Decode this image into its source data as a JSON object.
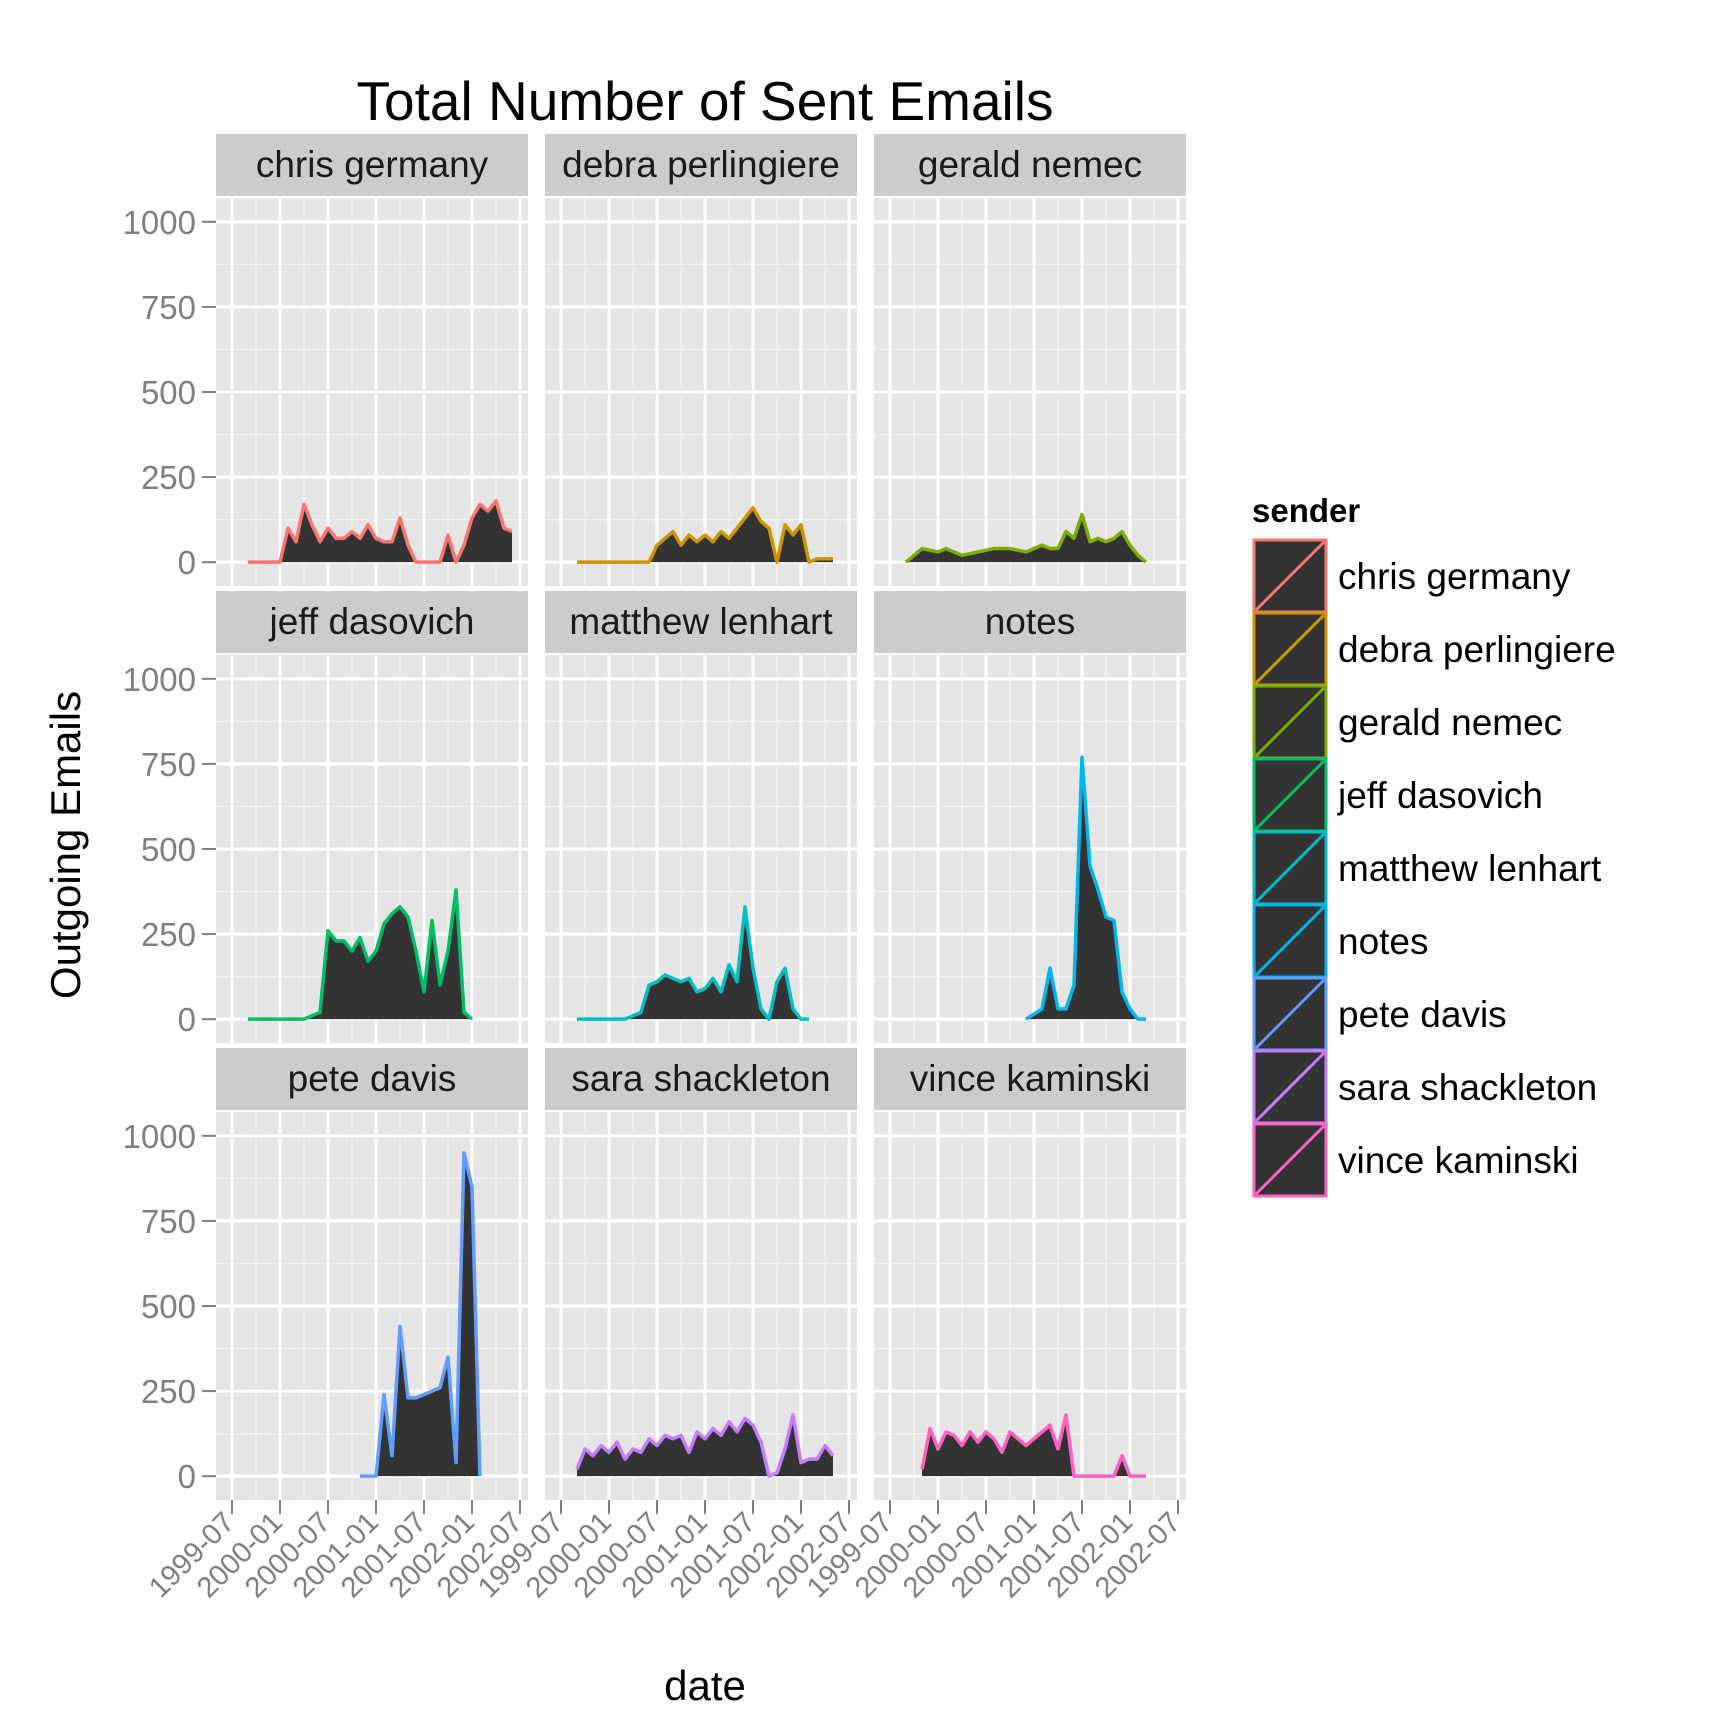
{
  "chart_data": {
    "type": "area",
    "title": "Total Number of Sent Emails",
    "xlabel": "date",
    "ylabel": "Outgoing Emails",
    "ylim": [
      0,
      1000
    ],
    "yticks": [
      0,
      250,
      500,
      750,
      1000
    ],
    "yticks_labels": [
      "0",
      "250",
      "500",
      "750",
      "1000"
    ],
    "xlim": [
      "1999-05",
      "2002-08"
    ],
    "xticks": [
      "1999-07",
      "2000-01",
      "2000-07",
      "2001-01",
      "2001-07",
      "2002-01",
      "2002-07"
    ],
    "grid": true,
    "facets": "3x3 grid by sender",
    "fill_color": "#333333",
    "panel_background": "#e5e5e5",
    "strip_background": "#cccccc",
    "legend": {
      "title": "sender",
      "placement": "right"
    },
    "series": [
      {
        "name": "chris germany",
        "color": "#F8766D",
        "x": [
          "1999-09",
          "2000-01",
          "2000-02",
          "2000-03",
          "2000-04",
          "2000-05",
          "2000-06",
          "2000-07",
          "2000-08",
          "2000-09",
          "2000-10",
          "2000-11",
          "2000-12",
          "2001-01",
          "2001-02",
          "2001-03",
          "2001-04",
          "2001-05",
          "2001-06",
          "2001-07",
          "2001-08",
          "2001-09",
          "2001-10",
          "2001-11",
          "2001-12",
          "2002-01",
          "2002-02",
          "2002-03",
          "2002-04",
          "2002-05",
          "2002-06"
        ],
        "y": [
          0,
          0,
          100,
          60,
          170,
          110,
          60,
          100,
          70,
          70,
          90,
          70,
          110,
          70,
          60,
          60,
          130,
          50,
          0,
          0,
          0,
          0,
          80,
          0,
          50,
          130,
          170,
          150,
          180,
          100,
          90
        ]
      },
      {
        "name": "debra perlingiere",
        "color": "#CD9600",
        "x": [
          "1999-09",
          "2000-06",
          "2000-07",
          "2000-08",
          "2000-09",
          "2000-10",
          "2000-11",
          "2000-12",
          "2001-01",
          "2001-02",
          "2001-03",
          "2001-04",
          "2001-05",
          "2001-06",
          "2001-07",
          "2001-08",
          "2001-09",
          "2001-10",
          "2001-11",
          "2001-12",
          "2002-01",
          "2002-02",
          "2002-03",
          "2002-04",
          "2002-05"
        ],
        "y": [
          0,
          0,
          50,
          70,
          90,
          50,
          80,
          60,
          80,
          60,
          90,
          70,
          100,
          130,
          160,
          120,
          100,
          0,
          110,
          80,
          110,
          0,
          10,
          10,
          10
        ]
      },
      {
        "name": "gerald nemec",
        "color": "#7CAE00",
        "x": [
          "1999-09",
          "1999-11",
          "2000-01",
          "2000-02",
          "2000-04",
          "2000-06",
          "2000-08",
          "2000-10",
          "2000-12",
          "2001-02",
          "2001-03",
          "2001-04",
          "2001-05",
          "2001-06",
          "2001-07",
          "2001-08",
          "2001-09",
          "2001-10",
          "2001-11",
          "2001-12",
          "2002-01",
          "2002-02",
          "2002-03"
        ],
        "y": [
          0,
          40,
          30,
          40,
          20,
          30,
          40,
          40,
          30,
          50,
          40,
          40,
          90,
          70,
          140,
          60,
          70,
          60,
          70,
          90,
          50,
          20,
          0
        ]
      },
      {
        "name": "jeff dasovich",
        "color": "#00BE67",
        "x": [
          "1999-09",
          "2000-04",
          "2000-06",
          "2000-07",
          "2000-08",
          "2000-09",
          "2000-10",
          "2000-11",
          "2000-12",
          "2001-01",
          "2001-02",
          "2001-03",
          "2001-04",
          "2001-05",
          "2001-06",
          "2001-07",
          "2001-08",
          "2001-09",
          "2001-10",
          "2001-11",
          "2001-12",
          "2002-01"
        ],
        "y": [
          0,
          0,
          20,
          260,
          230,
          230,
          200,
          240,
          170,
          200,
          280,
          310,
          330,
          300,
          200,
          80,
          290,
          100,
          200,
          380,
          20,
          0
        ]
      },
      {
        "name": "matthew lenhart",
        "color": "#00BFC4",
        "x": [
          "1999-09",
          "2000-03",
          "2000-05",
          "2000-06",
          "2000-07",
          "2000-08",
          "2000-09",
          "2000-10",
          "2000-11",
          "2000-12",
          "2001-01",
          "2001-02",
          "2001-03",
          "2001-04",
          "2001-05",
          "2001-06",
          "2001-07",
          "2001-08",
          "2001-09",
          "2001-10",
          "2001-11",
          "2001-12",
          "2002-01",
          "2002-02"
        ],
        "y": [
          0,
          0,
          20,
          100,
          110,
          130,
          120,
          110,
          120,
          80,
          90,
          120,
          80,
          160,
          110,
          330,
          150,
          30,
          0,
          110,
          150,
          30,
          0,
          0
        ]
      },
      {
        "name": "notes",
        "color": "#00B6EB",
        "x": [
          "2000-12",
          "2001-02",
          "2001-03",
          "2001-04",
          "2001-05",
          "2001-06",
          "2001-07",
          "2001-08",
          "2001-09",
          "2001-10",
          "2001-11",
          "2001-12",
          "2002-01",
          "2002-02",
          "2002-03"
        ],
        "y": [
          0,
          30,
          150,
          30,
          30,
          100,
          770,
          450,
          380,
          300,
          290,
          80,
          30,
          0,
          0
        ]
      },
      {
        "name": "pete davis",
        "color": "#619CFF",
        "x": [
          "2000-11",
          "2001-01",
          "2001-02",
          "2001-03",
          "2001-04",
          "2001-05",
          "2001-06",
          "2001-07",
          "2001-08",
          "2001-09",
          "2001-10",
          "2001-11",
          "2001-12",
          "2002-01",
          "2002-02"
        ],
        "y": [
          0,
          0,
          240,
          60,
          440,
          230,
          230,
          240,
          250,
          260,
          350,
          40,
          950,
          850,
          0
        ]
      },
      {
        "name": "sara shackleton",
        "color": "#C77CFF",
        "x": [
          "1999-09",
          "1999-10",
          "1999-11",
          "1999-12",
          "2000-01",
          "2000-02",
          "2000-03",
          "2000-04",
          "2000-05",
          "2000-06",
          "2000-07",
          "2000-08",
          "2000-09",
          "2000-10",
          "2000-11",
          "2000-12",
          "2001-01",
          "2001-02",
          "2001-03",
          "2001-04",
          "2001-05",
          "2001-06",
          "2001-07",
          "2001-08",
          "2001-09",
          "2001-10",
          "2001-11",
          "2001-12",
          "2002-01",
          "2002-02",
          "2002-03",
          "2002-04",
          "2002-05"
        ],
        "y": [
          20,
          80,
          60,
          90,
          70,
          100,
          50,
          80,
          70,
          110,
          90,
          120,
          110,
          120,
          70,
          130,
          110,
          140,
          120,
          160,
          130,
          170,
          150,
          100,
          0,
          10,
          80,
          180,
          40,
          50,
          50,
          90,
          60
        ]
      },
      {
        "name": "vince kaminski",
        "color": "#FF61C3",
        "x": [
          "1999-11",
          "1999-12",
          "2000-01",
          "2000-02",
          "2000-03",
          "2000-04",
          "2000-05",
          "2000-06",
          "2000-07",
          "2000-08",
          "2000-09",
          "2000-10",
          "2000-11",
          "2000-12",
          "2001-01",
          "2001-02",
          "2001-03",
          "2001-04",
          "2001-05",
          "2001-06",
          "2001-07",
          "2001-08",
          "2001-09",
          "2001-10",
          "2001-11",
          "2001-12",
          "2002-01",
          "2002-02",
          "2002-03"
        ],
        "y": [
          20,
          140,
          80,
          130,
          120,
          90,
          130,
          100,
          130,
          110,
          70,
          130,
          110,
          90,
          110,
          130,
          150,
          80,
          180,
          0,
          0,
          0,
          0,
          0,
          0,
          60,
          0,
          0,
          0
        ]
      }
    ]
  }
}
